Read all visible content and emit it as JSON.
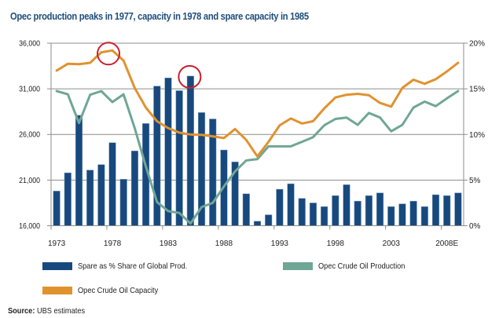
{
  "chart_data": {
    "type": "bar+line",
    "title": "Opec production peaks in 1977, capacity in 1978 and spare capacity in 1985",
    "categories": [
      1973,
      1974,
      1975,
      1976,
      1977,
      1978,
      1979,
      1980,
      1981,
      1982,
      1983,
      1984,
      1985,
      1986,
      1987,
      1988,
      1989,
      1990,
      1991,
      1992,
      1993,
      1994,
      1995,
      1996,
      1997,
      1998,
      1999,
      2000,
      2001,
      2002,
      2003,
      2004,
      2005,
      2006,
      2007,
      2008,
      2009
    ],
    "x_tick_labels": [
      "1973",
      "1978",
      "1983",
      "1988",
      "1993",
      "1998",
      "2003",
      "2008E"
    ],
    "left_axis": {
      "ylim": [
        16000,
        36000
      ],
      "ticks": [
        "16,000",
        "21,000",
        "26,000",
        "31,000",
        "36,000"
      ]
    },
    "right_axis": {
      "ylim": [
        0,
        20
      ],
      "ticks": [
        "0%",
        "5%",
        "10%",
        "15%",
        "20%"
      ]
    },
    "grid": true,
    "legend_position": "bottom",
    "series": [
      {
        "name": "Spare as % Share of Global Prod.",
        "type": "bar",
        "axis": "right",
        "color": "#17497e",
        "values": [
          3.8,
          5.8,
          12.1,
          6.1,
          6.7,
          9.1,
          5.1,
          8.2,
          11.2,
          15.3,
          16.2,
          14.8,
          16.4,
          12.4,
          11.7,
          8.3,
          7.0,
          3.5,
          0.5,
          1.2,
          4.0,
          4.6,
          3.0,
          2.5,
          2.1,
          3.3,
          4.5,
          2.7,
          3.3,
          3.6,
          2.1,
          2.4,
          2.7,
          2.1,
          3.4,
          3.3,
          3.6
        ]
      },
      {
        "name": "Opec Crude Oil Production",
        "type": "line",
        "axis": "left",
        "color": "#70a695",
        "values": [
          30750,
          30400,
          27250,
          30350,
          30750,
          29550,
          30400,
          26700,
          22500,
          18600,
          17600,
          17400,
          16250,
          18050,
          18500,
          20300,
          21950,
          23150,
          23300,
          24700,
          24700,
          24700,
          25200,
          25700,
          27000,
          27700,
          27850,
          27050,
          28350,
          27850,
          26350,
          27050,
          28950,
          29600,
          29100,
          29950,
          30750
        ]
      },
      {
        "name": "Opec Crude Oil Capacity",
        "type": "line",
        "axis": "left",
        "color": "#e0922f",
        "values": [
          33000,
          33750,
          33700,
          33850,
          35000,
          35200,
          34100,
          31100,
          28950,
          27450,
          26700,
          26200,
          26000,
          25950,
          25800,
          25600,
          26600,
          25400,
          23600,
          25200,
          27000,
          27750,
          27200,
          27450,
          28850,
          30050,
          30350,
          30450,
          30300,
          29450,
          29050,
          31100,
          32000,
          31550,
          32050,
          32900,
          33850
        ]
      }
    ],
    "annotations": [
      {
        "type": "circle",
        "year": 1978,
        "target": "Opec Crude Oil Capacity peak",
        "color": "#c8202f"
      },
      {
        "type": "circle",
        "year": 1985,
        "target": "Spare capacity peak",
        "color": "#c8202f"
      }
    ]
  },
  "legend": [
    {
      "label": "Spare as % Share of Global Prod.",
      "color": "#17497e"
    },
    {
      "label": "Opec Crude Oil Production",
      "color": "#70a695"
    },
    {
      "label": "Opec Crude Oil Capacity",
      "color": "#e0922f"
    }
  ],
  "source": {
    "prefix": "Source:",
    "text": " UBS estimates"
  }
}
